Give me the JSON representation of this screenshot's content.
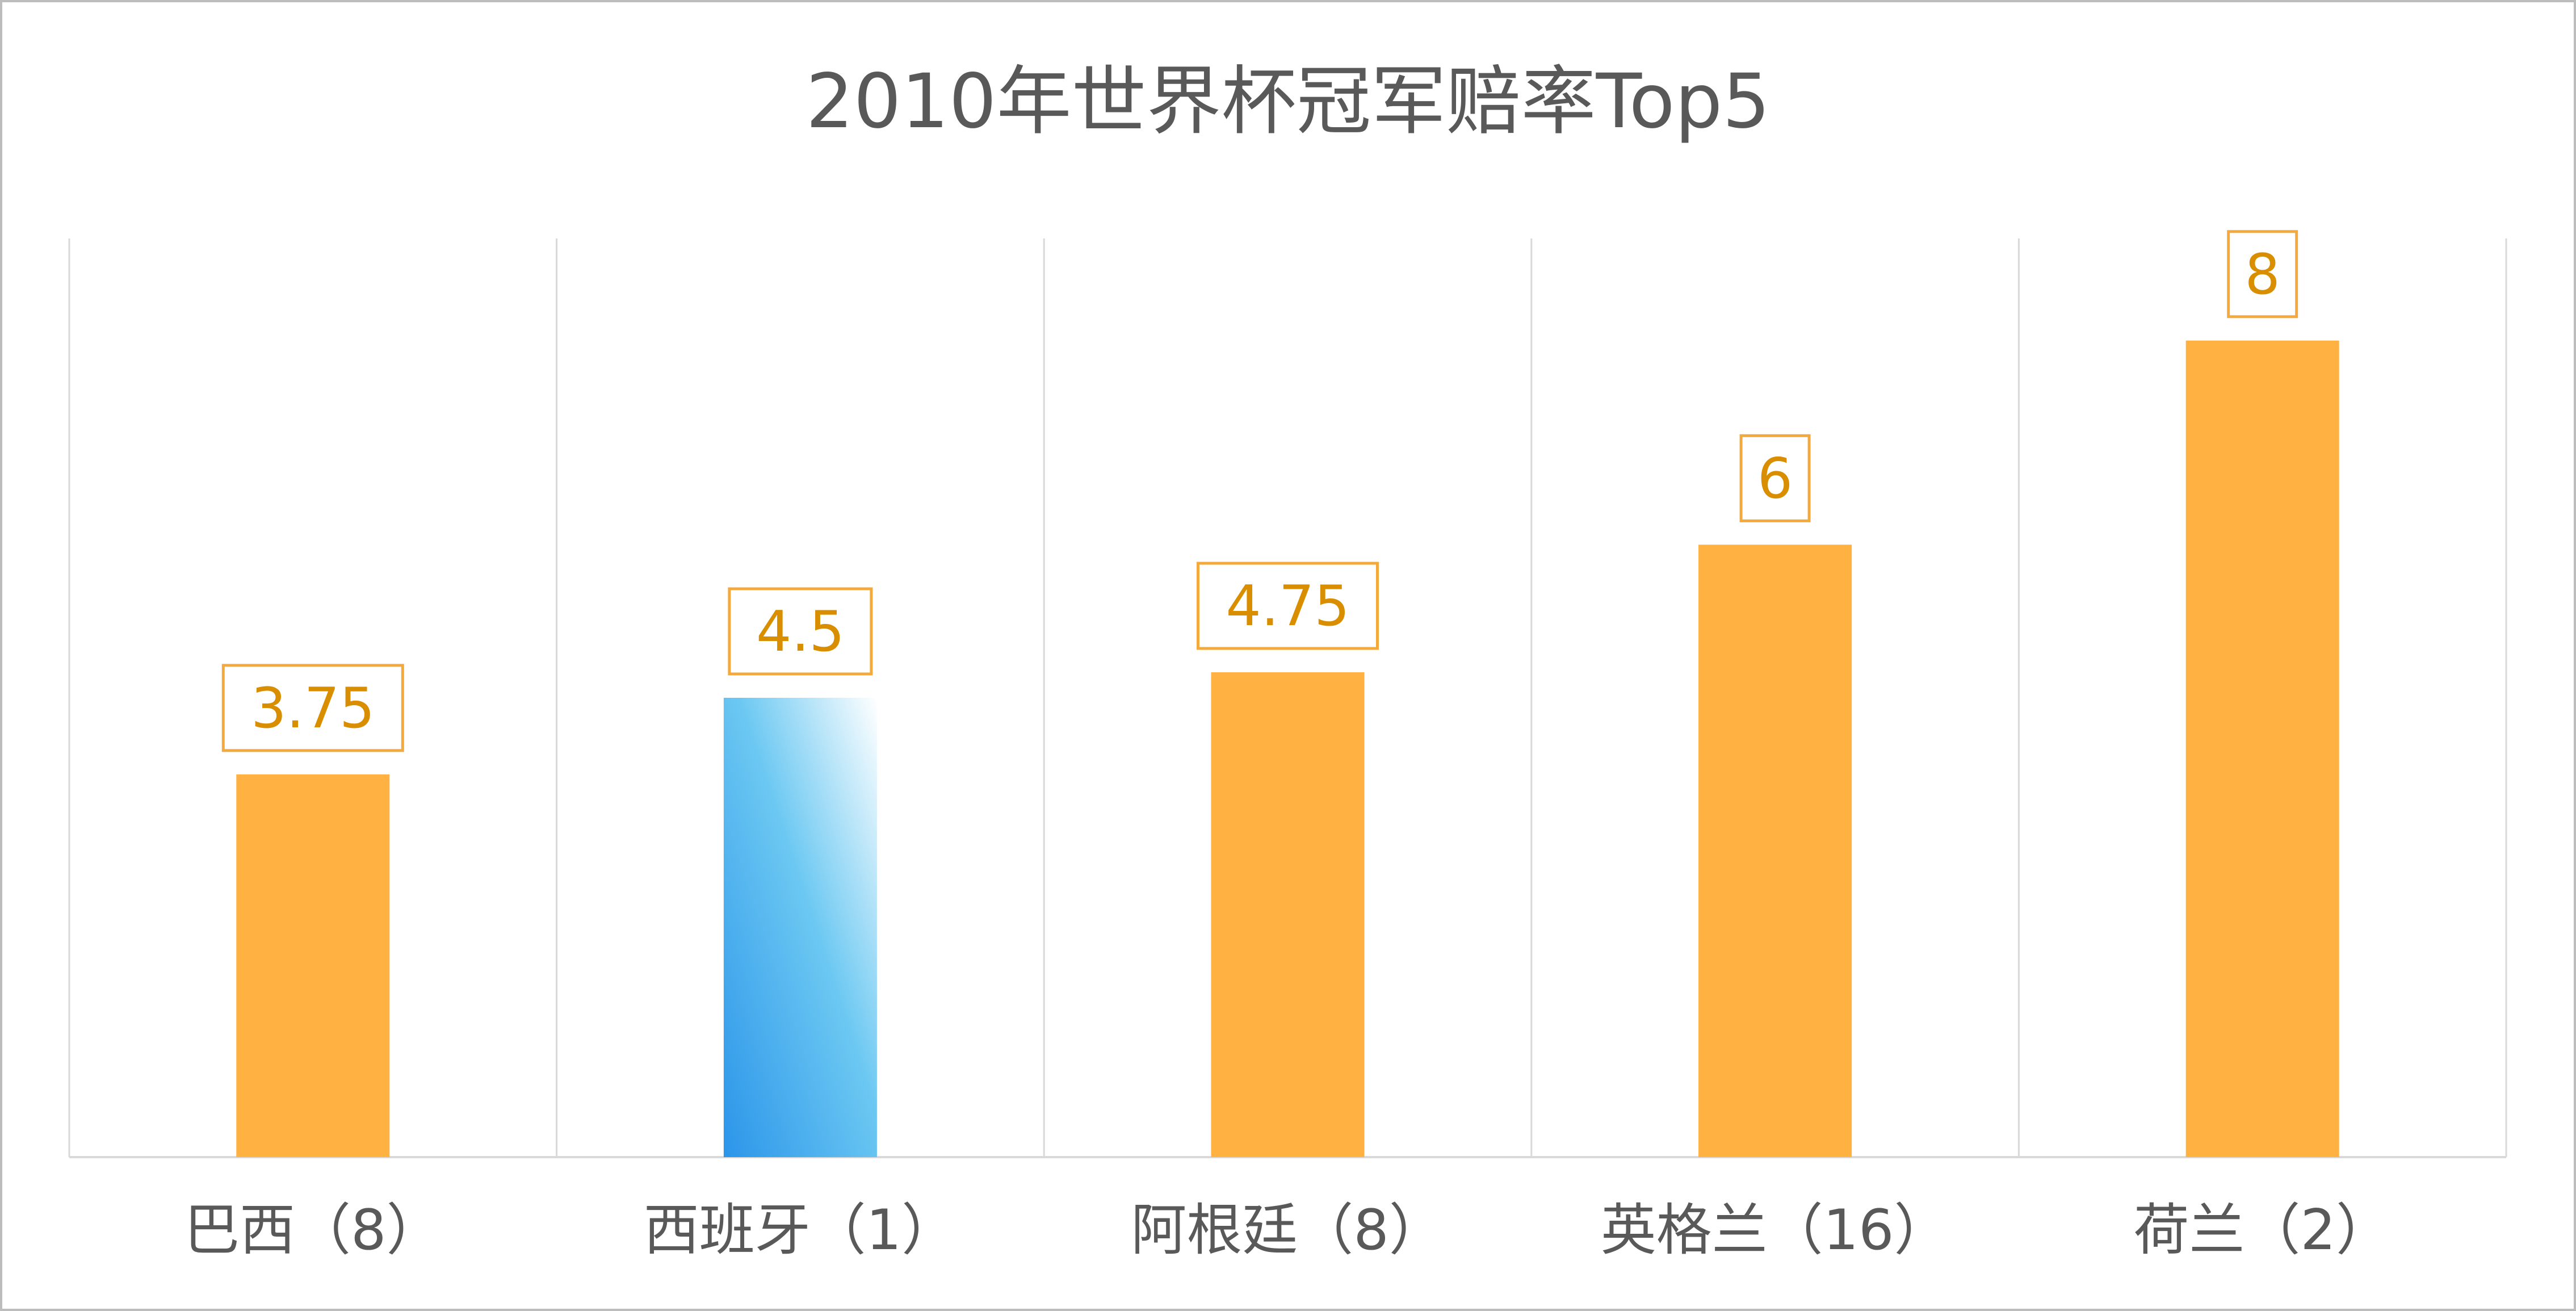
{
  "chart_data": {
    "type": "bar",
    "title": "2010年世界杯冠军赔率Top5",
    "categories": [
      "巴西（8）",
      "西班牙（1）",
      "阿根廷（8）",
      "英格兰（16）",
      "荷兰（2）"
    ],
    "values": [
      3.75,
      4.5,
      4.75,
      6,
      8
    ],
    "data_labels": [
      "3.75",
      "4.5",
      "4.75",
      "6",
      "8"
    ],
    "highlight_index": 1,
    "ylim": [
      0,
      9
    ],
    "grid": true,
    "legend": "none",
    "colors": {
      "bar": "#ffb142",
      "highlight_start": "#2b95e9",
      "highlight_mid": "#6cc8f2",
      "highlight_end": "#ffffff",
      "label_text": "#d98e00",
      "label_border": "#f3a93b",
      "grid": "#d9d9d9"
    }
  }
}
